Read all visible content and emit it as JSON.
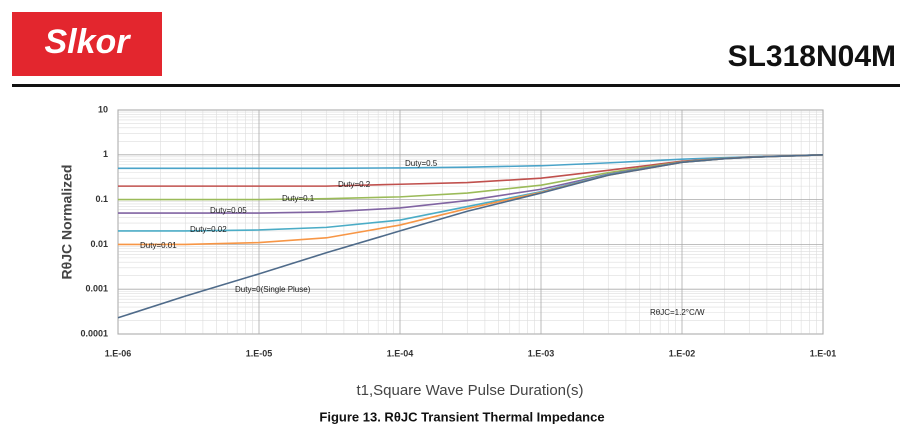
{
  "header": {
    "logo": "Slkor",
    "title": "SL318N04M"
  },
  "caption": "Figure 13. RθJC Transient Thermal Impedance",
  "chart_data": {
    "type": "line",
    "xlabel": "t1,Square Wave Pulse Duration(s)",
    "ylabel": "RθJC Normalized",
    "annotation": "RθJC=1.2°C/W",
    "xlog": true,
    "ylog": true,
    "grid": true,
    "minor_grid": true,
    "xlim": [
      1e-06,
      0.1
    ],
    "ylim": [
      0.0001,
      10
    ],
    "xticks": [
      {
        "value": 1e-06,
        "label": "1.E-06"
      },
      {
        "value": 1e-05,
        "label": "1.E-05"
      },
      {
        "value": 0.0001,
        "label": "1.E-04"
      },
      {
        "value": 0.001,
        "label": "1.E-03"
      },
      {
        "value": 0.01,
        "label": "1.E-02"
      },
      {
        "value": 0.1,
        "label": "1.E-01"
      }
    ],
    "yticks": [
      0.0001,
      0.001,
      0.01,
      0.1,
      1,
      10
    ],
    "x": [
      1e-06,
      3e-06,
      1e-05,
      3e-05,
      0.0001,
      0.0003,
      0.001,
      0.003,
      0.01,
      0.02,
      0.03,
      0.1
    ],
    "series": [
      {
        "name": "Duty=0.5",
        "color": "#4aa3c8",
        "values": [
          0.5,
          0.5,
          0.5,
          0.5,
          0.51,
          0.53,
          0.57,
          0.66,
          0.8,
          0.86,
          0.9,
          1.0
        ]
      },
      {
        "name": "Duty=0.2",
        "color": "#c0504d",
        "values": [
          0.2,
          0.2,
          0.2,
          0.2,
          0.22,
          0.24,
          0.3,
          0.45,
          0.72,
          0.83,
          0.89,
          1.0
        ]
      },
      {
        "name": "Duty=0.1",
        "color": "#9bbb59",
        "values": [
          0.1,
          0.1,
          0.1,
          0.105,
          0.115,
          0.14,
          0.21,
          0.4,
          0.7,
          0.83,
          0.88,
          1.0
        ]
      },
      {
        "name": "Duty=0.05",
        "color": "#8064a2",
        "values": [
          0.05,
          0.05,
          0.05,
          0.053,
          0.065,
          0.095,
          0.17,
          0.37,
          0.69,
          0.82,
          0.88,
          1.0
        ]
      },
      {
        "name": "Duty=0.02",
        "color": "#4bacc6",
        "values": [
          0.02,
          0.02,
          0.021,
          0.024,
          0.035,
          0.07,
          0.15,
          0.36,
          0.68,
          0.82,
          0.88,
          1.0
        ]
      },
      {
        "name": "Duty=0.01",
        "color": "#f79646",
        "values": [
          0.01,
          0.01,
          0.011,
          0.014,
          0.027,
          0.063,
          0.145,
          0.35,
          0.68,
          0.82,
          0.88,
          1.0
        ]
      },
      {
        "name": "Duty=0(Single Pluse)",
        "color": "#4f6b8a",
        "values": [
          0.00023,
          0.0007,
          0.0022,
          0.0065,
          0.02,
          0.055,
          0.14,
          0.35,
          0.68,
          0.82,
          0.88,
          1.0
        ]
      }
    ]
  }
}
